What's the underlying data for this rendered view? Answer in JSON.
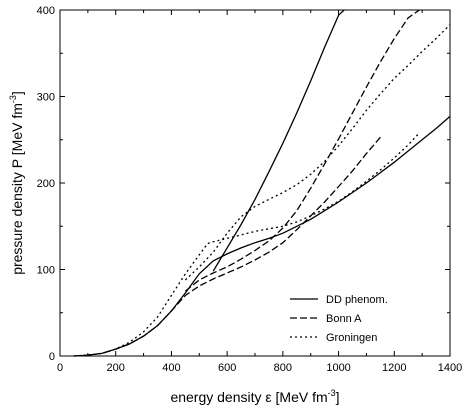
{
  "chart_data": {
    "type": "line",
    "title": "",
    "xlabel": "energy density ε [MeV fm",
    "xlabel_exp": "-3",
    "xlabel_tail": "]",
    "ylabel": "pressure density P [MeV fm",
    "ylabel_exp": "-3",
    "ylabel_tail": "]",
    "xlim": [
      0,
      1400
    ],
    "ylim": [
      0,
      400
    ],
    "xticks": [
      0,
      200,
      400,
      600,
      800,
      1000,
      1200,
      1400
    ],
    "yticks": [
      0,
      100,
      200,
      300,
      400
    ],
    "legend": "bottom-right",
    "grid": false,
    "series": [
      {
        "name": "DD phenom.",
        "style": "solid",
        "x": [
          50,
          100,
          150,
          200,
          250,
          300,
          350,
          400,
          450,
          500,
          550,
          600,
          650,
          700,
          750,
          800,
          850,
          900,
          950,
          1000,
          1050,
          1100,
          1150,
          1200,
          1250,
          1300,
          1350,
          1400
        ],
        "y": [
          0,
          1,
          3,
          8,
          14,
          23,
          35,
          52,
          73,
          95,
          110,
          118,
          125,
          131,
          136,
          142,
          150,
          158,
          168,
          178,
          189,
          200,
          212,
          224,
          237,
          250,
          263,
          277
        ]
      },
      {
        "name": "",
        "style": "solid",
        "x": [
          550,
          600,
          650,
          700,
          750,
          800,
          850,
          900,
          950,
          1000,
          1020
        ],
        "y": [
          98,
          125,
          152,
          181,
          213,
          246,
          281,
          318,
          357,
          394,
          400
        ]
      },
      {
        "name": "Bonn A",
        "style": "dashed",
        "x": [
          50,
          100,
          150,
          200,
          250,
          300,
          350,
          400,
          450,
          500,
          550,
          600,
          650,
          700,
          750,
          800,
          850,
          900,
          950,
          1000,
          1050,
          1100,
          1150
        ],
        "y": [
          0,
          1,
          3,
          8,
          14,
          23,
          35,
          52,
          70,
          81,
          89,
          96,
          103,
          111,
          120,
          131,
          146,
          162,
          178,
          196,
          214,
          234,
          253
        ]
      },
      {
        "name": "",
        "style": "dashed",
        "x": [
          450,
          500,
          550,
          600,
          650,
          700,
          750,
          800,
          850,
          900,
          950,
          1000,
          1050,
          1100,
          1150,
          1200,
          1250,
          1290
        ],
        "y": [
          75,
          88,
          96,
          103,
          112,
          122,
          133,
          148,
          168,
          194,
          222,
          251,
          281,
          311,
          340,
          367,
          391,
          400
        ]
      },
      {
        "name": "Groningen",
        "style": "dotted",
        "x": [
          50,
          100,
          150,
          200,
          250,
          300,
          350,
          400,
          450,
          500,
          530,
          550,
          600,
          650,
          700,
          750,
          800,
          850,
          900,
          950,
          1000,
          1050,
          1100,
          1150,
          1200,
          1250,
          1290
        ],
        "y": [
          0,
          1,
          3,
          8,
          16,
          28,
          45,
          70,
          95,
          117,
          130,
          132,
          136,
          140,
          144,
          147,
          150,
          155,
          162,
          170,
          179,
          190,
          202,
          215,
          229,
          244,
          258
        ]
      },
      {
        "name": "",
        "style": "dotted",
        "x": [
          450,
          500,
          550,
          600,
          650,
          700,
          750,
          800,
          850,
          900,
          950,
          1000,
          1050,
          1100,
          1150,
          1200,
          1250,
          1300,
          1350,
          1400
        ],
        "y": [
          88,
          103,
          120,
          142,
          161,
          173,
          181,
          189,
          198,
          210,
          225,
          243,
          263,
          284,
          303,
          321,
          336,
          352,
          367,
          383
        ]
      }
    ]
  }
}
